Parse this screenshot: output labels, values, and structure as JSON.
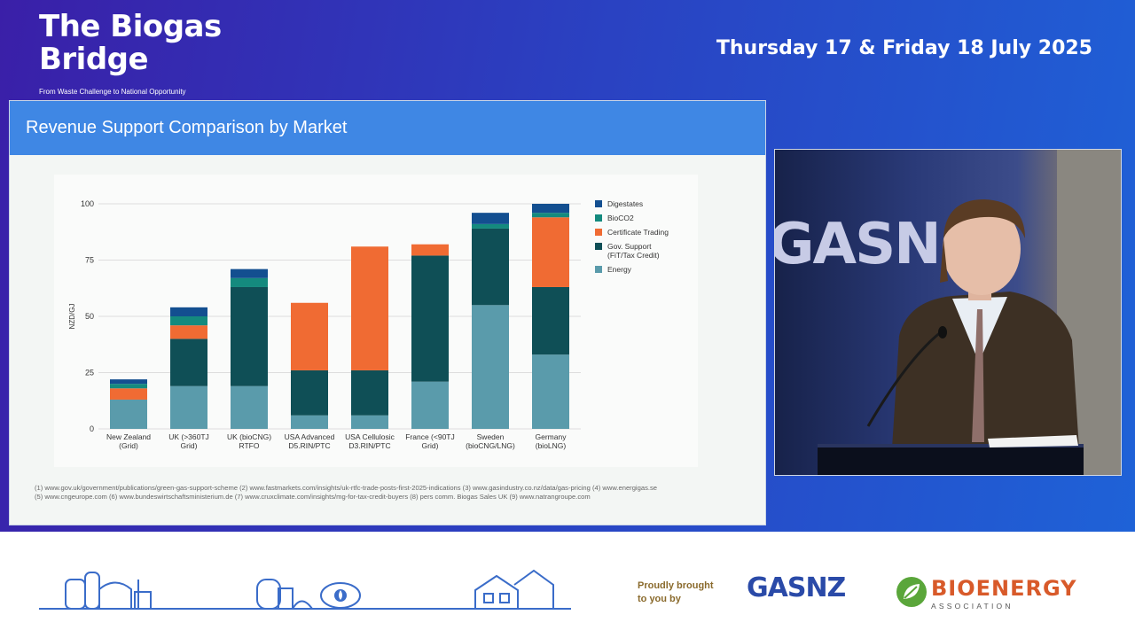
{
  "event": {
    "title_line1": "The Biogas",
    "title_line2": "Bridge",
    "subtitle": "From Waste Challenge to National Opportunity",
    "date": "Thursday 17 & Friday 18 July 2025"
  },
  "slide": {
    "title": "Revenue Support Comparison by Market",
    "footnote_line1": "(1) www.gov.uk/government/publications/green-gas-support-scheme (2) www.fastmarkets.com/insights/uk-rtfc-trade-posts-first-2025-indications (3) www.gasindustry.co.nz/data/gas-pricing (4) www.energigas.se",
    "footnote_line2": "(5) www.cngeurope.com (6) www.bundeswirtschaftsministerium.de (7) www.cruxclimate.com/insights/mg-for-tax-credit-buyers (8) pers comm. Biogas Sales UK (9) www.natrangroupe.com"
  },
  "chart_data": {
    "type": "bar",
    "stacked": true,
    "ylabel": "NZD/GJ",
    "ylim": [
      0,
      100
    ],
    "yticks": [
      0,
      25,
      50,
      75,
      100
    ],
    "grid": true,
    "legend_position": "right",
    "categories": [
      [
        "New Zealand",
        "(Grid)"
      ],
      [
        "UK (>360TJ",
        "Grid)"
      ],
      [
        "UK (bioCNG)",
        "RTFO"
      ],
      [
        "USA Advanced",
        "D5.RIN/PTC"
      ],
      [
        "USA Cellulosic",
        "D3.RIN/PTC"
      ],
      [
        "France (<90TJ",
        "Grid)"
      ],
      [
        "Sweden",
        "(bioCNG/LNG)"
      ],
      [
        "Germany",
        "(bioLNG)"
      ]
    ],
    "series": [
      {
        "name": "Energy",
        "color": "#5a9bab",
        "values": [
          13,
          19,
          19,
          6,
          6,
          21,
          55,
          33
        ]
      },
      {
        "name": "Gov. Support\n(FiT/Tax Credit)",
        "color": "#0f4f56",
        "values": [
          0,
          21,
          44,
          20,
          20,
          56,
          34,
          30
        ]
      },
      {
        "name": "Certificate Trading",
        "color": "#f06b33",
        "values": [
          5,
          6,
          0,
          30,
          55,
          5,
          0,
          31
        ]
      },
      {
        "name": "BioCO2",
        "color": "#148a7e",
        "values": [
          2,
          4,
          4,
          0,
          0,
          0,
          2,
          2
        ]
      },
      {
        "name": "Digestates",
        "color": "#134f90",
        "values": [
          2,
          4,
          4,
          0,
          0,
          0,
          5,
          4
        ]
      }
    ],
    "legend_order": [
      "Digestates",
      "BioCO2",
      "Certificate Trading",
      "Gov. Support\n(FiT/Tax Credit)",
      "Energy"
    ]
  },
  "video": {
    "backdrop_text": "GASN"
  },
  "footer": {
    "proud_line1": "Proudly brought",
    "proud_line2": "to you by",
    "sponsor1": "GASNZ",
    "sponsor2_name": "BIOENERGY",
    "sponsor2_sub": "ASSOCIATION"
  }
}
